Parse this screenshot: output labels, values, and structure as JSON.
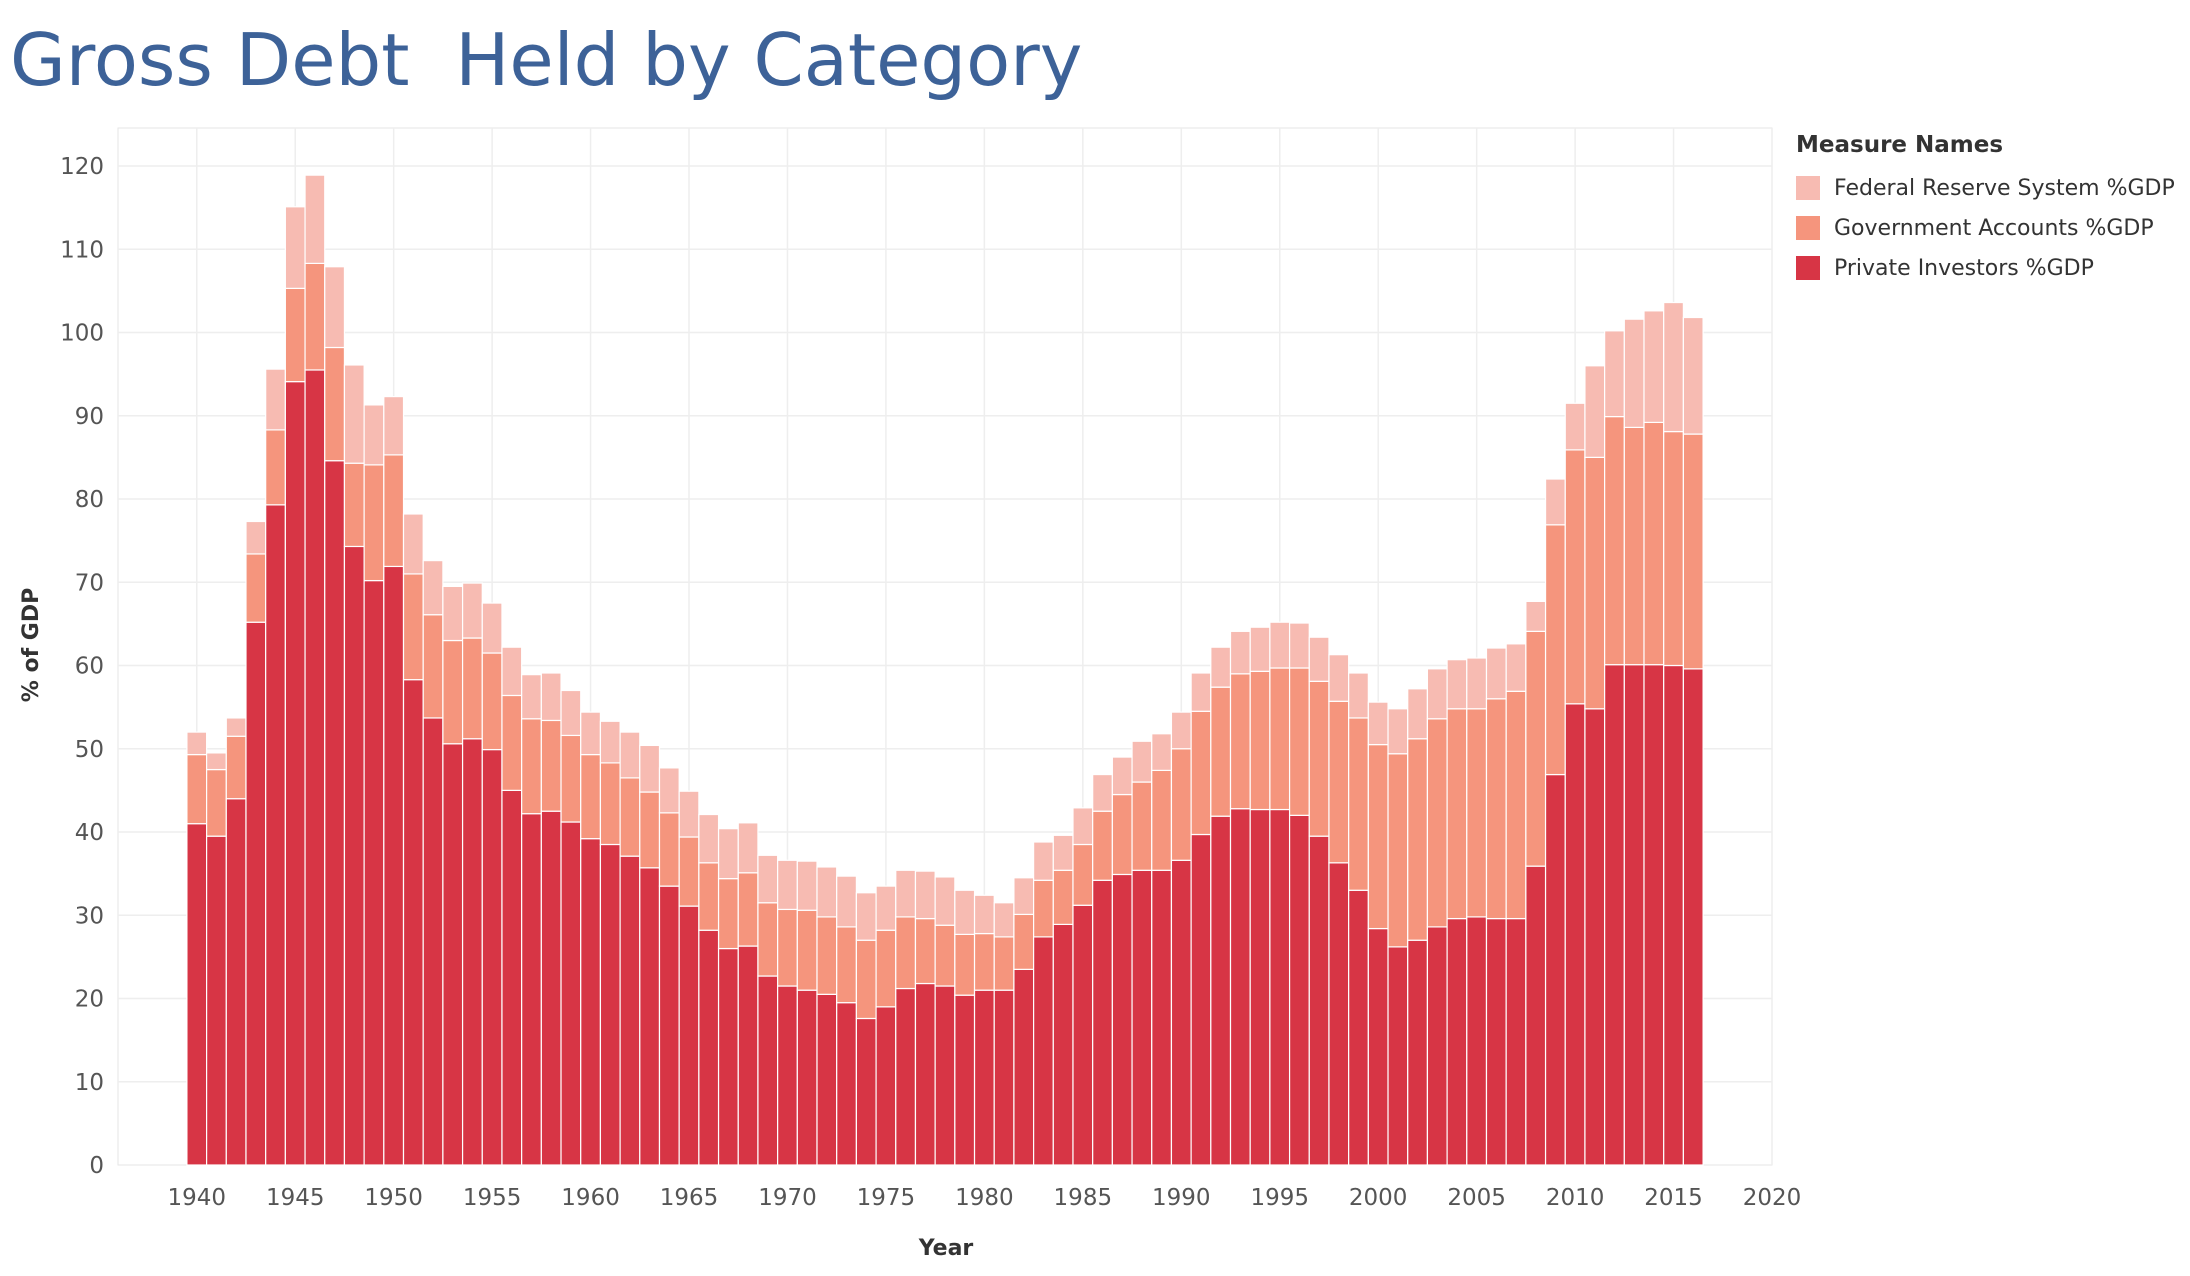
{
  "title": "Gross Debt  Held by Category",
  "colors": {
    "fed": "#f7bbb2",
    "gov": "#f5957d",
    "priv": "#d73545",
    "title": "#3d6298"
  },
  "legend": {
    "title": "Measure Names",
    "items": [
      {
        "label": "Federal Reserve System %GDP",
        "color": "#f7bbb2"
      },
      {
        "label": "Government Accounts %GDP",
        "color": "#f5957d"
      },
      {
        "label": "Private Investors %GDP",
        "color": "#d73545"
      }
    ]
  },
  "chart_data": {
    "type": "bar",
    "stacked": true,
    "title": "Gross Debt  Held by Category",
    "xlabel": "Year",
    "ylabel": "% of GDP",
    "xlim": [
      1936,
      2020
    ],
    "ylim": [
      0,
      120
    ],
    "yticks": [
      0,
      10,
      20,
      30,
      40,
      50,
      60,
      70,
      80,
      90,
      100,
      110,
      120
    ],
    "xticks": [
      1940,
      1945,
      1950,
      1955,
      1960,
      1965,
      1970,
      1975,
      1980,
      1985,
      1990,
      1995,
      2000,
      2005,
      2010,
      2015,
      2020
    ],
    "grid": true,
    "legend_position": "top-right",
    "x": [
      1940,
      1941,
      1942,
      1943,
      1944,
      1945,
      1946,
      1947,
      1948,
      1949,
      1950,
      1951,
      1952,
      1953,
      1954,
      1955,
      1956,
      1957,
      1958,
      1959,
      1960,
      1961,
      1962,
      1963,
      1964,
      1965,
      1966,
      1967,
      1968,
      1969,
      1970,
      1971,
      1972,
      1973,
      1974,
      1975,
      1976,
      1977,
      1978,
      1979,
      1980,
      1981,
      1982,
      1983,
      1984,
      1985,
      1986,
      1987,
      1988,
      1989,
      1990,
      1991,
      1992,
      1993,
      1994,
      1995,
      1996,
      1997,
      1998,
      1999,
      2000,
      2001,
      2002,
      2003,
      2004,
      2005,
      2006,
      2007,
      2008,
      2009,
      2010,
      2011,
      2012,
      2013,
      2014,
      2015,
      2016
    ],
    "series": [
      {
        "name": "Private Investors %GDP",
        "values": [
          41,
          39.5,
          44,
          65.2,
          79.3,
          94.1,
          95.5,
          84.6,
          74.3,
          70.2,
          71.9,
          58.3,
          53.7,
          50.6,
          51.2,
          49.9,
          45,
          42.2,
          42.5,
          41.2,
          39.2,
          38.5,
          37.1,
          35.7,
          33.5,
          31.1,
          28.2,
          26,
          26.3,
          22.7,
          21.5,
          21,
          20.5,
          19.5,
          17.6,
          19,
          21.2,
          21.8,
          21.5,
          20.4,
          21,
          21,
          23.5,
          27.4,
          28.9,
          31.2,
          34.2,
          34.9,
          35.4,
          35.4,
          36.6,
          39.7,
          41.9,
          42.8,
          42.7,
          42.7,
          42,
          39.5,
          36.3,
          33,
          28.4,
          26.2,
          27,
          28.6,
          29.6,
          29.8,
          29.6,
          29.6,
          35.9,
          46.9,
          55.4,
          54.8,
          60.1,
          60.1,
          60.1,
          60,
          59.6
        ]
      },
      {
        "name": "Government Accounts %GDP",
        "values": [
          8.3,
          8,
          7.5,
          8.2,
          9,
          11.2,
          12.8,
          13.6,
          10,
          13.9,
          13.4,
          12.7,
          12.4,
          12.4,
          12.1,
          11.6,
          11.4,
          11.4,
          10.9,
          10.4,
          10.1,
          9.8,
          9.4,
          9.1,
          8.8,
          8.3,
          8.1,
          8.4,
          8.8,
          8.8,
          9.2,
          9.6,
          9.3,
          9.1,
          9.4,
          9.2,
          8.6,
          7.8,
          7.3,
          7.3,
          6.8,
          6.4,
          6.6,
          6.8,
          6.5,
          7.3,
          8.3,
          9.6,
          10.6,
          12,
          13.4,
          14.8,
          15.5,
          16.2,
          16.6,
          17,
          17.7,
          18.6,
          19.4,
          20.7,
          22.1,
          23.2,
          24.2,
          25,
          25.2,
          25,
          26.4,
          27.3,
          28.2,
          30,
          30.5,
          30.2,
          29.8,
          28.5,
          29.1,
          28.1,
          28.2
        ]
      },
      {
        "name": "Federal Reserve System %GDP",
        "values": [
          2.7,
          2,
          2.2,
          3.9,
          7.3,
          9.8,
          10.6,
          9.7,
          11.8,
          7.2,
          7,
          7.2,
          6.5,
          6.5,
          6.6,
          6,
          5.8,
          5.3,
          5.7,
          5.4,
          5.1,
          5,
          5.5,
          5.6,
          5.4,
          5.5,
          5.8,
          6,
          6,
          5.7,
          5.9,
          5.9,
          6,
          6.1,
          5.7,
          5.3,
          5.6,
          5.7,
          5.8,
          5.3,
          4.6,
          4.1,
          4.4,
          4.6,
          4.2,
          4.4,
          4.4,
          4.5,
          4.9,
          4.4,
          4.4,
          4.6,
          4.8,
          5.1,
          5.3,
          5.5,
          5.4,
          5.3,
          5.6,
          5.4,
          5.1,
          5.4,
          6,
          6,
          5.9,
          6.1,
          6.1,
          5.7,
          3.6,
          5.5,
          5.6,
          11,
          10.3,
          13,
          13.4,
          15.5,
          14
        ]
      }
    ]
  }
}
